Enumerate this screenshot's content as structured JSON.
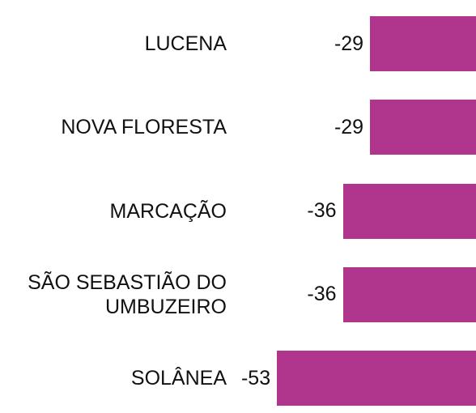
{
  "chart_data": {
    "type": "bar",
    "orientation": "horizontal",
    "categories": [
      "LUCENA",
      "NOVA FLORESTA",
      "MARCAÇÃO",
      "SÃO SEBASTIÃO DO UMBUZEIRO",
      "SOLÂNEA"
    ],
    "values": [
      -29,
      -29,
      -36,
      -36,
      -53
    ],
    "color": "#b0358c",
    "xlim": [
      -60,
      0
    ]
  }
}
